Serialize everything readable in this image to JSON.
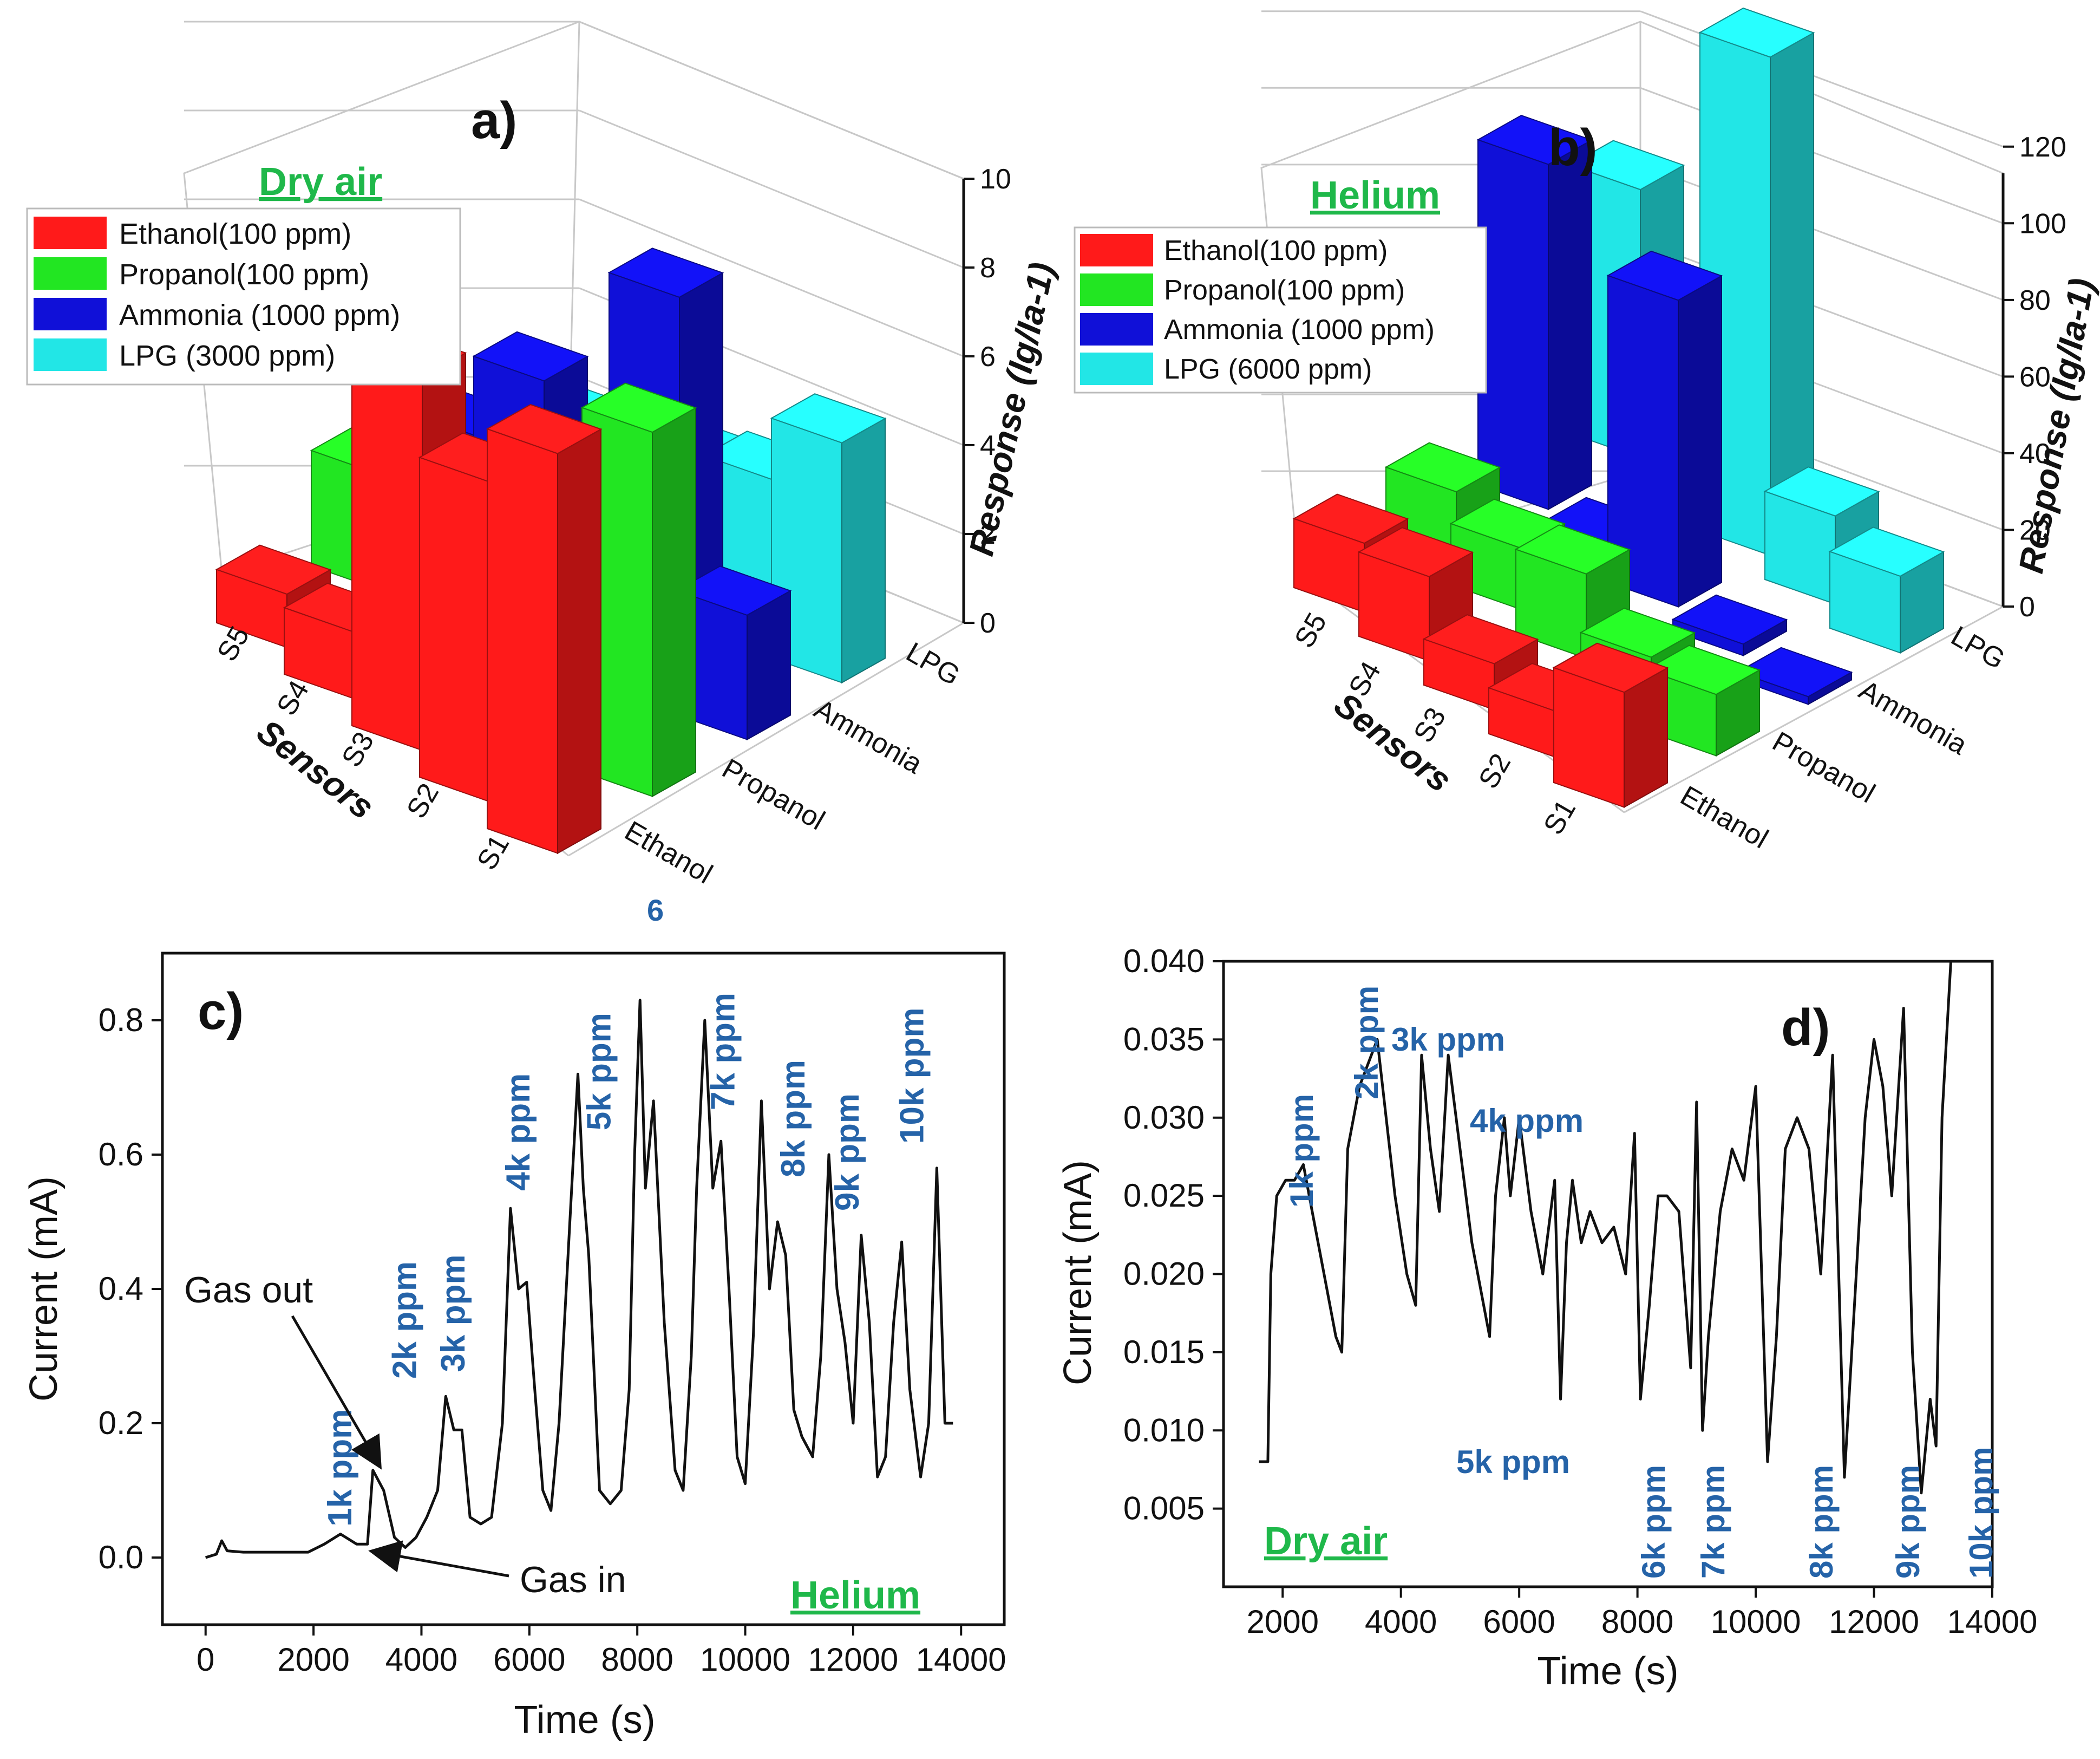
{
  "colors": {
    "ethanol": "#ff1a1a",
    "propanol": "#22e622",
    "ammonia": "#1010d8",
    "lpg": "#22e6e6",
    "annotation": "#2563a8",
    "green_label": "#1fb84a",
    "red_label": "#ff2020"
  },
  "chart_data": [
    {
      "panel": "a)",
      "type": "bar",
      "subtype": "3d-bar",
      "condition_label": "Dry air",
      "series": [
        {
          "name": "Ethanol(100 ppm)",
          "values": [
            9.0,
            7.2,
            8.4,
            1.5,
            1.2
          ]
        },
        {
          "name": "Propanol(100 ppm)",
          "values": [
            8.2,
            5.0,
            4.6,
            3.3,
            2.6
          ]
        },
        {
          "name": "Ammonia (1000 ppm)",
          "values": [
            2.8,
            8.8,
            3.6,
            4.6,
            2.2
          ]
        },
        {
          "name": "LPG (3000 ppm)",
          "values": [
            5.4,
            3.4,
            2.6,
            1.8,
            1.2
          ]
        }
      ],
      "categories": [
        "S1",
        "S2",
        "S3",
        "S4",
        "S5"
      ],
      "gases": [
        "Ethanol",
        "Propanol",
        "Ammonia",
        "LPG"
      ],
      "xlabel": "Sensors",
      "zlabel": "Response (Ig/Ia-1)",
      "zlim": [
        0,
        10
      ],
      "zticks": [
        "0",
        "2",
        "4",
        "6",
        "8",
        "10"
      ],
      "stray_label": "6"
    },
    {
      "panel": "b)",
      "type": "bar",
      "subtype": "3d-bar",
      "condition_label": "Helium",
      "series": [
        {
          "name": "Ethanol(100 ppm)",
          "values": [
            30,
            12,
            12,
            22,
            18
          ]
        },
        {
          "name": "Propanol(100 ppm)",
          "values": [
            16,
            13,
            22,
            16,
            18
          ]
        },
        {
          "name": "Ammonia (1000 ppm)",
          "values": [
            2,
            3,
            80,
            3,
            90
          ]
        },
        {
          "name": "LPG (6000 ppm)",
          "values": [
            20,
            23,
            130,
            4,
            70
          ]
        }
      ],
      "categories": [
        "S1",
        "S2",
        "S3",
        "S4",
        "S5"
      ],
      "gases": [
        "Ethanol",
        "Propanol",
        "Ammonia",
        "LPG"
      ],
      "xlabel": "Sensors",
      "zlabel": "Response (Ig/Ia-1)",
      "zlim": [
        0,
        130
      ],
      "zticks": [
        "0",
        "20",
        "40",
        "60",
        "80",
        "100",
        "120"
      ]
    },
    {
      "panel": "c)",
      "type": "line",
      "condition_label": "Helium",
      "xlabel": "Time (s)",
      "ylabel": "Current (mA)",
      "xlim": [
        -800,
        14800
      ],
      "ylim": [
        -0.1,
        0.9
      ],
      "xticks": [
        "0",
        "2000",
        "4000",
        "6000",
        "8000",
        "10000",
        "12000",
        "14000"
      ],
      "xtick_values": [
        0,
        2000,
        4000,
        6000,
        8000,
        10000,
        12000,
        14000
      ],
      "yticks": [
        "0.0",
        "0.2",
        "0.4",
        "0.6",
        "0.8"
      ],
      "ytick_values": [
        0.0,
        0.2,
        0.4,
        0.6,
        0.8
      ],
      "x": [
        0,
        200,
        300,
        400,
        700,
        1000,
        1500,
        1900,
        2200,
        2500,
        2800,
        3000,
        3100,
        3300,
        3500,
        3700,
        3900,
        4100,
        4300,
        4450,
        4600,
        4750,
        4900,
        5100,
        5300,
        5500,
        5650,
        5800,
        5950,
        6100,
        6250,
        6400,
        6550,
        6750,
        6900,
        7000,
        7100,
        7300,
        7500,
        7700,
        7850,
        7950,
        8050,
        8150,
        8300,
        8500,
        8700,
        8850,
        9000,
        9100,
        9250,
        9400,
        9550,
        9700,
        9850,
        10000,
        10150,
        10300,
        10450,
        10600,
        10750,
        10900,
        11050,
        11250,
        11400,
        11550,
        11700,
        11850,
        12000,
        12150,
        12300,
        12450,
        12600,
        12750,
        12900,
        13050,
        13250,
        13400,
        13550,
        13700,
        13850
      ],
      "y": [
        0.0,
        0.005,
        0.025,
        0.01,
        0.008,
        0.008,
        0.008,
        0.008,
        0.02,
        0.035,
        0.02,
        0.02,
        0.13,
        0.1,
        0.03,
        0.015,
        0.03,
        0.06,
        0.1,
        0.24,
        0.19,
        0.19,
        0.06,
        0.05,
        0.06,
        0.2,
        0.52,
        0.4,
        0.41,
        0.25,
        0.1,
        0.07,
        0.2,
        0.5,
        0.72,
        0.55,
        0.45,
        0.1,
        0.08,
        0.1,
        0.25,
        0.6,
        0.83,
        0.55,
        0.68,
        0.35,
        0.13,
        0.1,
        0.3,
        0.55,
        0.8,
        0.55,
        0.62,
        0.4,
        0.15,
        0.11,
        0.33,
        0.68,
        0.4,
        0.5,
        0.45,
        0.22,
        0.18,
        0.15,
        0.3,
        0.6,
        0.4,
        0.32,
        0.2,
        0.48,
        0.35,
        0.12,
        0.15,
        0.35,
        0.47,
        0.25,
        0.12,
        0.2,
        0.58,
        0.2,
        0.2
      ],
      "annotations": [
        "1k ppm",
        "2k ppm",
        "3k ppm",
        "4k ppm",
        "5k ppm",
        "7k ppm",
        "8k ppm",
        "9k ppm",
        "10k ppm"
      ],
      "annotation_x": [
        2700,
        3900,
        4800,
        6000,
        7500,
        9800,
        11100,
        12100,
        13300
      ],
      "annotation_y": [
        0.03,
        0.25,
        0.26,
        0.53,
        0.62,
        0.65,
        0.55,
        0.5,
        0.6
      ],
      "gas_out_label": "Gas out",
      "gas_in_label": "Gas in"
    },
    {
      "panel": "d)",
      "type": "line",
      "condition_label": "Dry air",
      "xlabel": "Time (s)",
      "ylabel": "Current (mA)",
      "xlim": [
        1000,
        14000
      ],
      "ylim": [
        0.0,
        0.04
      ],
      "xticks": [
        "2000",
        "4000",
        "6000",
        "8000",
        "10000",
        "12000",
        "14000"
      ],
      "xtick_values": [
        2000,
        4000,
        6000,
        8000,
        10000,
        12000,
        14000
      ],
      "yticks": [
        "0.005",
        "0.010",
        "0.015",
        "0.020",
        "0.025",
        "0.030",
        "0.035",
        "0.040"
      ],
      "ytick_values": [
        0.005,
        0.01,
        0.015,
        0.02,
        0.025,
        0.03,
        0.035,
        0.04
      ],
      "x": [
        1600,
        1750,
        1800,
        1900,
        2050,
        2200,
        2350,
        2500,
        2700,
        2900,
        3000,
        3100,
        3300,
        3500,
        3600,
        3750,
        3900,
        4100,
        4250,
        4350,
        4500,
        4650,
        4800,
        5000,
        5200,
        5400,
        5500,
        5600,
        5750,
        5850,
        6000,
        6200,
        6400,
        6600,
        6700,
        6800,
        6900,
        7050,
        7200,
        7400,
        7600,
        7800,
        7950,
        8050,
        8200,
        8350,
        8500,
        8700,
        8900,
        9000,
        9100,
        9200,
        9400,
        9600,
        9800,
        10000,
        10200,
        10350,
        10500,
        10700,
        10900,
        11100,
        11300,
        11500,
        11700,
        11850,
        12000,
        12150,
        12300,
        12500,
        12650,
        12800,
        12950,
        13050,
        13150,
        13300,
        13400
      ],
      "y": [
        0.008,
        0.008,
        0.02,
        0.025,
        0.026,
        0.026,
        0.027,
        0.024,
        0.02,
        0.016,
        0.015,
        0.028,
        0.032,
        0.034,
        0.035,
        0.03,
        0.025,
        0.02,
        0.018,
        0.034,
        0.028,
        0.024,
        0.034,
        0.028,
        0.022,
        0.018,
        0.016,
        0.025,
        0.03,
        0.025,
        0.03,
        0.024,
        0.02,
        0.026,
        0.012,
        0.022,
        0.026,
        0.022,
        0.024,
        0.022,
        0.023,
        0.02,
        0.029,
        0.012,
        0.018,
        0.025,
        0.025,
        0.024,
        0.014,
        0.031,
        0.01,
        0.016,
        0.024,
        0.028,
        0.026,
        0.032,
        0.008,
        0.016,
        0.028,
        0.03,
        0.028,
        0.02,
        0.034,
        0.007,
        0.02,
        0.03,
        0.035,
        0.032,
        0.025,
        0.037,
        0.015,
        0.006,
        0.012,
        0.009,
        0.03,
        0.04,
        0.04
      ],
      "annotations": [
        "1k ppm",
        "2k ppm",
        "3k ppm",
        "4k ppm",
        "5k ppm",
        "6k ppm",
        "7k ppm",
        "8k ppm",
        "9k ppm",
        "10k ppm"
      ],
      "panel_label_text": "d)"
    }
  ],
  "labels": {
    "a_panel": "a)",
    "b_panel": "b)",
    "c_panel": "c)",
    "d_panel": "d)",
    "dry_air": "Dry air",
    "helium": "Helium",
    "sensors": "Sensors",
    "response": "Response (Ig/Ia-1)",
    "time": "Time (s)",
    "current": "Current (mA)",
    "gas_out": "Gas out",
    "gas_in": "Gas in",
    "gas_ethanol": "Ethanol",
    "gas_propanol": "Propanol",
    "gas_ammonia": "Ammonia",
    "gas_lpg": "LPG",
    "s1": "S1",
    "s2": "S2",
    "s3": "S3",
    "s4": "S4",
    "s5": "S5",
    "stray_6": "6",
    "legend_a": [
      "Ethanol(100 ppm)",
      "Propanol(100 ppm)",
      "Ammonia (1000 ppm)",
      "LPG (3000 ppm)"
    ],
    "legend_b": [
      "Ethanol(100 ppm)",
      "Propanol(100 ppm)",
      "Ammonia (1000 ppm)",
      "LPG (6000 ppm)"
    ],
    "c_ann": {
      "k1": "1k ppm",
      "k2": "2k ppm",
      "k3": "3k ppm",
      "k4": "4k ppm",
      "k5": "5k ppm",
      "k7": "7k ppm",
      "k8": "8k ppm",
      "k9": "9k ppm",
      "k10": "10k ppm"
    },
    "d_ann": {
      "k1": "1k ppm",
      "k2": "2k ppm",
      "k3": "3k ppm",
      "k4": "4k ppm",
      "k5": "5k ppm",
      "k6": "6k ppm",
      "k7": "7k ppm",
      "k8": "8k ppm",
      "k9": "9k ppm",
      "k10": "10k ppm"
    }
  }
}
